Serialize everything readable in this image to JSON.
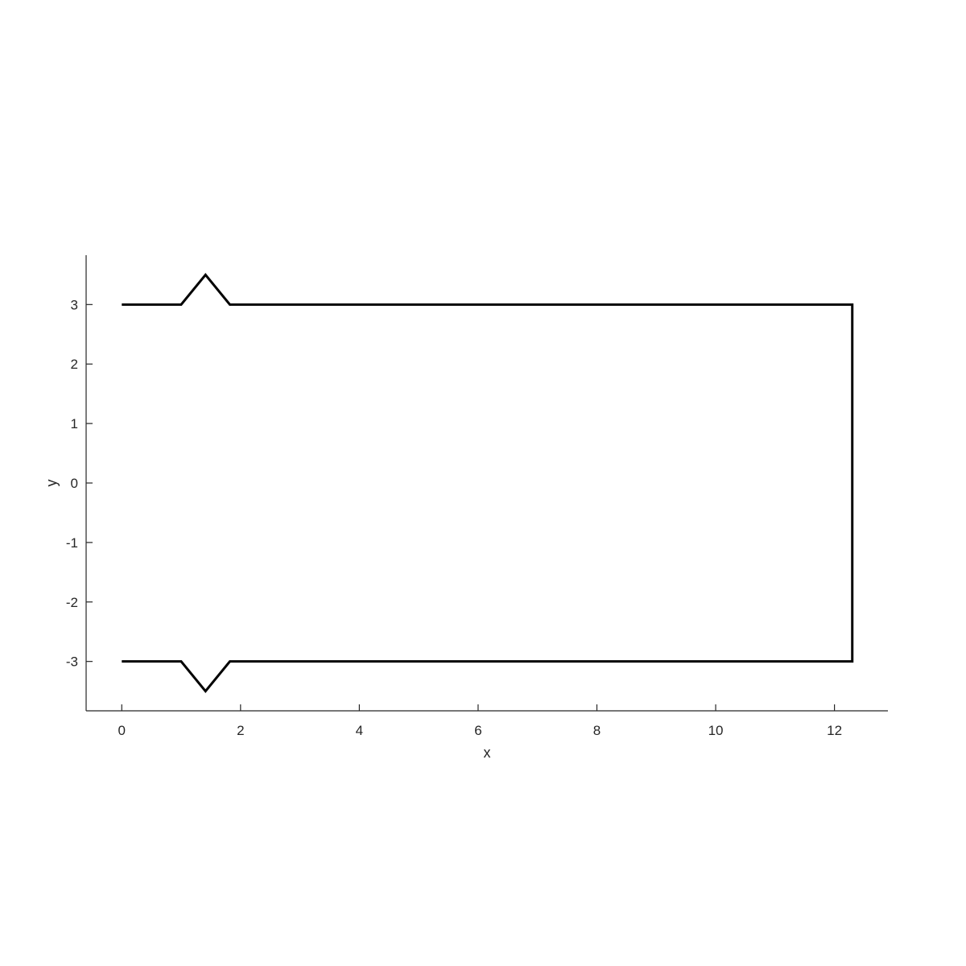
{
  "chart_data": {
    "type": "line",
    "xlabel": "x",
    "ylabel": "y",
    "xlim": [
      -0.6,
      12.9
    ],
    "ylim": [
      -3.83,
      3.83
    ],
    "x_ticks": [
      0,
      2,
      4,
      6,
      8,
      10,
      12
    ],
    "y_ticks": [
      -3,
      -2,
      -1,
      0,
      1,
      2,
      3
    ],
    "grid": false,
    "line_color": "#000000",
    "series": [
      {
        "x": [
          0,
          1,
          1.41,
          1.82,
          12.3,
          12.3,
          1.82,
          1.41,
          1,
          0
        ],
        "y": [
          3,
          3,
          3.5,
          3,
          3,
          -3,
          -3,
          -3.5,
          -3,
          -3
        ]
      }
    ]
  }
}
